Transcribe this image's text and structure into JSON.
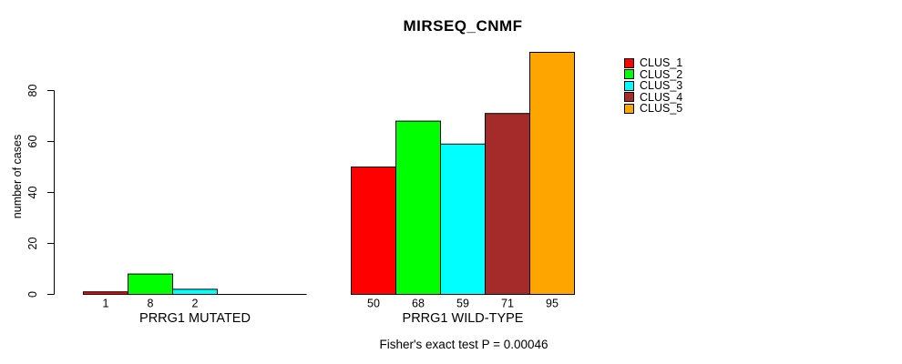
{
  "figure": {
    "background": "#ffffff",
    "foreground": "#000000"
  },
  "chart_data": {
    "type": "bar",
    "title": "MIRSEQ_CNMF",
    "xlabel": "",
    "ylabel": "number of cases",
    "ylim": [
      0,
      80
    ],
    "yticks": [
      0,
      20,
      40,
      60,
      80
    ],
    "grid": false,
    "legend_position": "top-right-outside",
    "series": [
      {
        "name": "CLUS_1",
        "color": "#ff0000"
      },
      {
        "name": "CLUS_2",
        "color": "#00ff00"
      },
      {
        "name": "CLUS_3",
        "color": "#00ffff"
      },
      {
        "name": "CLUS_4",
        "color": "#a52a2a"
      },
      {
        "name": "CLUS_5",
        "color": "#ffa500"
      }
    ],
    "groups": [
      {
        "label": "PRRG1 MUTATED",
        "values": [
          1,
          8,
          2,
          0,
          0
        ],
        "bar_labels": [
          "1",
          "8",
          "2",
          "",
          ""
        ]
      },
      {
        "label": "PRRG1 WILD-TYPE",
        "values": [
          50,
          68,
          59,
          71,
          95
        ],
        "bar_labels": [
          "50",
          "68",
          "59",
          "71",
          "95"
        ]
      }
    ],
    "annotation": "Fisher's exact test P = 0.00046"
  }
}
